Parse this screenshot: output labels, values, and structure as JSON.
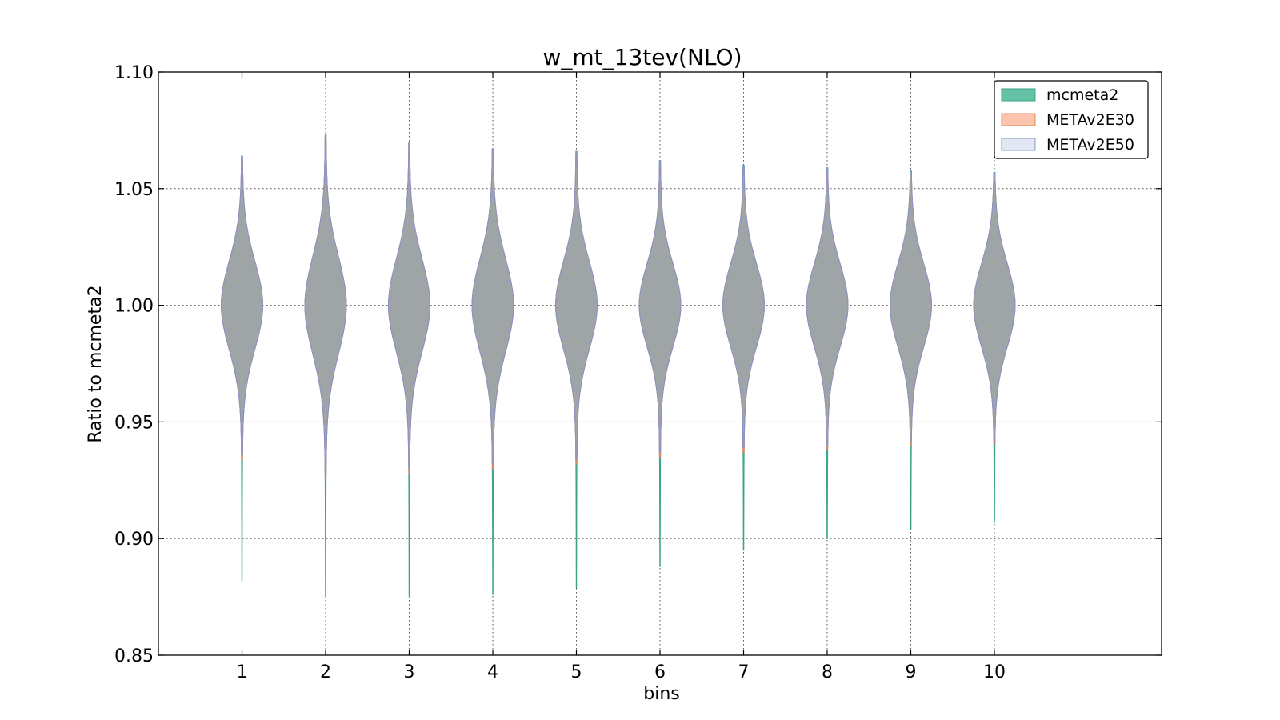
{
  "chart_data": {
    "type": "violin",
    "title": "w_mt_13tev(NLO)",
    "xlabel": "bins",
    "ylabel": "Ratio to mcmeta2",
    "ylim": [
      0.85,
      1.1
    ],
    "yticks": [
      "0.85",
      "0.90",
      "0.95",
      "1.00",
      "1.05",
      "1.10"
    ],
    "categories": [
      "1",
      "2",
      "3",
      "4",
      "5",
      "6",
      "7",
      "8",
      "9",
      "10"
    ],
    "xlim": [
      0,
      12
    ],
    "grid": true,
    "legend_position": "top-right",
    "series": [
      {
        "name": "mcmeta2",
        "fill": "#66c2a5",
        "stroke": "#3aa386",
        "min": [
          0.882,
          0.875,
          0.875,
          0.876,
          0.879,
          0.888,
          0.895,
          0.9,
          0.904,
          0.907
        ],
        "max": [
          1.064,
          1.073,
          1.07,
          1.067,
          1.066,
          1.062,
          1.06,
          1.059,
          1.058,
          1.057
        ],
        "center": [
          1.0,
          1.0,
          1.0,
          1.0,
          1.0,
          1.0,
          1.0,
          1.0,
          1.0,
          1.0
        ],
        "sigma": [
          0.019,
          0.021,
          0.02,
          0.02,
          0.019,
          0.018,
          0.018,
          0.018,
          0.018,
          0.018
        ]
      },
      {
        "name": "METAv2E30",
        "fill": "#fc8d62",
        "stroke": "#e8845f",
        "min": [
          0.934,
          0.926,
          0.928,
          0.93,
          0.932,
          0.935,
          0.937,
          0.938,
          0.94,
          0.941
        ],
        "max": [
          1.062,
          1.071,
          1.068,
          1.065,
          1.064,
          1.06,
          1.058,
          1.057,
          1.056,
          1.055
        ],
        "center": [
          1.0,
          1.0,
          1.0,
          1.0,
          1.0,
          1.0,
          1.0,
          1.0,
          1.0,
          1.0
        ],
        "sigma": [
          0.019,
          0.021,
          0.02,
          0.02,
          0.019,
          0.018,
          0.018,
          0.018,
          0.018,
          0.018
        ]
      },
      {
        "name": "METAv2E50",
        "fill": "#8da0cb",
        "stroke": "#8a93c8",
        "min": [
          0.936,
          0.928,
          0.93,
          0.932,
          0.934,
          0.937,
          0.939,
          0.94,
          0.942,
          0.942
        ],
        "max": [
          1.064,
          1.073,
          1.07,
          1.067,
          1.066,
          1.062,
          1.06,
          1.059,
          1.058,
          1.057
        ],
        "center": [
          1.0,
          1.0,
          1.0,
          1.0,
          1.0,
          1.0,
          1.0,
          1.0,
          1.0,
          1.0
        ],
        "sigma": [
          0.019,
          0.021,
          0.02,
          0.02,
          0.019,
          0.018,
          0.018,
          0.018,
          0.018,
          0.018
        ]
      }
    ],
    "overlap_color": "#a49d8e"
  }
}
